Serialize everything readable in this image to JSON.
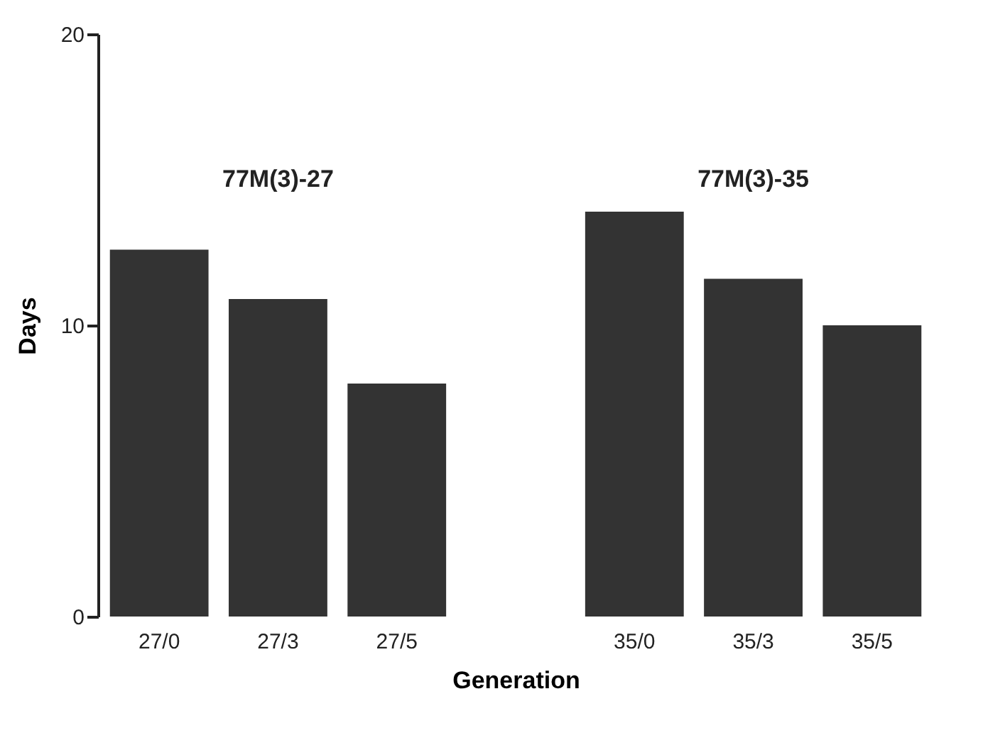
{
  "chart_data": {
    "type": "bar",
    "xlabel": "Generation",
    "ylabel": "Days",
    "categories": [
      "27/0",
      "27/3",
      "27/5",
      null,
      "35/0",
      "35/3",
      "35/5"
    ],
    "values": [
      12.6,
      10.9,
      8.0,
      null,
      13.9,
      11.6,
      10.0
    ],
    "color": "#333333",
    "ylim": [
      0,
      20
    ],
    "yticks": [
      0,
      10,
      20
    ],
    "grid": false,
    "annotations": [
      "77M(3)-27",
      "77M(3)-35"
    ]
  }
}
